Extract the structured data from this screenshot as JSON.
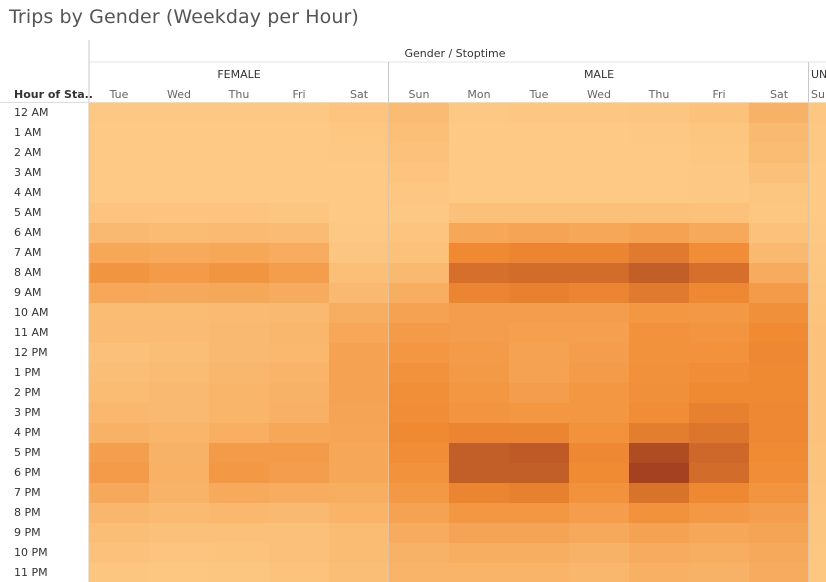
{
  "title": "Trips by Gender (Weekday per Hour)",
  "column_group_title": "Gender / Stoptime",
  "row_header": "Hour of Sta..",
  "colors": {
    "min": "#fdc985",
    "mid": "#f08a32",
    "max": "#9e3a1e",
    "divider": "#c8c8c8",
    "band_line": "#e6e6e6"
  },
  "chart_data": {
    "type": "heatmap",
    "title": "Trips by Gender (Weekday per Hour)",
    "column_field": "Gender / Stoptime",
    "row_field": "Hour of Sta..",
    "scale": "relative trip count, 0 (lightest) to 1 (darkest)",
    "rows": [
      "12 AM",
      "1 AM",
      "2 AM",
      "3 AM",
      "4 AM",
      "5 AM",
      "6 AM",
      "7 AM",
      "8 AM",
      "9 AM",
      "10 AM",
      "11 AM",
      "12 PM",
      "1 PM",
      "2 PM",
      "3 PM",
      "4 PM",
      "5 PM",
      "6 PM",
      "7 PM",
      "8 PM",
      "9 PM",
      "10 PM",
      "11 PM"
    ],
    "groups": [
      {
        "gender": "FEMALE",
        "days": [
          "Tue",
          "Wed",
          "Thu",
          "Fri",
          "Sat"
        ],
        "values": [
          [
            0.01,
            0.01,
            0.01,
            0.01,
            0.04
          ],
          [
            0.0,
            0.0,
            0.0,
            0.0,
            0.02
          ],
          [
            0.0,
            0.0,
            0.0,
            0.0,
            0.01
          ],
          [
            0.0,
            0.0,
            0.0,
            0.0,
            0.0
          ],
          [
            0.0,
            0.0,
            0.0,
            0.0,
            0.0
          ],
          [
            0.04,
            0.04,
            0.04,
            0.03,
            0.0
          ],
          [
            0.14,
            0.12,
            0.13,
            0.11,
            0.01
          ],
          [
            0.3,
            0.27,
            0.3,
            0.25,
            0.03
          ],
          [
            0.45,
            0.4,
            0.45,
            0.38,
            0.09
          ],
          [
            0.3,
            0.28,
            0.29,
            0.26,
            0.14
          ],
          [
            0.12,
            0.12,
            0.13,
            0.14,
            0.24
          ],
          [
            0.11,
            0.11,
            0.14,
            0.16,
            0.3
          ],
          [
            0.08,
            0.1,
            0.14,
            0.15,
            0.34
          ],
          [
            0.1,
            0.12,
            0.16,
            0.18,
            0.33
          ],
          [
            0.12,
            0.14,
            0.17,
            0.2,
            0.34
          ],
          [
            0.15,
            0.14,
            0.17,
            0.22,
            0.32
          ],
          [
            0.2,
            0.17,
            0.23,
            0.3,
            0.31
          ],
          [
            0.37,
            0.2,
            0.4,
            0.4,
            0.3
          ],
          [
            0.4,
            0.21,
            0.42,
            0.38,
            0.3
          ],
          [
            0.28,
            0.19,
            0.27,
            0.25,
            0.24
          ],
          [
            0.16,
            0.13,
            0.15,
            0.14,
            0.18
          ],
          [
            0.1,
            0.07,
            0.08,
            0.08,
            0.12
          ],
          [
            0.06,
            0.04,
            0.05,
            0.07,
            0.12
          ],
          [
            0.03,
            0.02,
            0.03,
            0.05,
            0.1
          ]
        ]
      },
      {
        "gender": "MALE",
        "days": [
          "Sun",
          "Mon",
          "Tue",
          "Wed",
          "Thu",
          "Fri",
          "Sat"
        ],
        "values": [
          [
            0.12,
            0.01,
            0.02,
            0.02,
            0.03,
            0.06,
            0.2
          ],
          [
            0.09,
            0.0,
            0.0,
            0.0,
            0.01,
            0.03,
            0.14
          ],
          [
            0.06,
            0.0,
            0.0,
            0.0,
            0.0,
            0.02,
            0.12
          ],
          [
            0.04,
            0.0,
            0.0,
            0.0,
            0.0,
            0.01,
            0.07
          ],
          [
            0.02,
            0.0,
            0.0,
            0.0,
            0.0,
            0.01,
            0.03
          ],
          [
            0.01,
            0.07,
            0.07,
            0.07,
            0.07,
            0.06,
            0.02
          ],
          [
            0.04,
            0.3,
            0.32,
            0.3,
            0.34,
            0.28,
            0.06
          ],
          [
            0.06,
            0.55,
            0.58,
            0.58,
            0.64,
            0.52,
            0.14
          ],
          [
            0.14,
            0.7,
            0.72,
            0.72,
            0.8,
            0.7,
            0.26
          ],
          [
            0.24,
            0.58,
            0.6,
            0.58,
            0.64,
            0.56,
            0.4
          ],
          [
            0.34,
            0.38,
            0.38,
            0.38,
            0.44,
            0.42,
            0.5
          ],
          [
            0.4,
            0.38,
            0.36,
            0.36,
            0.48,
            0.46,
            0.54
          ],
          [
            0.44,
            0.4,
            0.34,
            0.38,
            0.48,
            0.48,
            0.56
          ],
          [
            0.48,
            0.41,
            0.34,
            0.4,
            0.49,
            0.52,
            0.55
          ],
          [
            0.51,
            0.44,
            0.38,
            0.44,
            0.5,
            0.55,
            0.55
          ],
          [
            0.52,
            0.46,
            0.44,
            0.44,
            0.52,
            0.6,
            0.56
          ],
          [
            0.55,
            0.58,
            0.58,
            0.48,
            0.62,
            0.66,
            0.56
          ],
          [
            0.52,
            0.8,
            0.82,
            0.56,
            0.9,
            0.74,
            0.54
          ],
          [
            0.48,
            0.8,
            0.8,
            0.54,
            0.96,
            0.72,
            0.52
          ],
          [
            0.42,
            0.58,
            0.6,
            0.48,
            0.68,
            0.56,
            0.46
          ],
          [
            0.34,
            0.44,
            0.44,
            0.38,
            0.48,
            0.42,
            0.38
          ],
          [
            0.26,
            0.32,
            0.32,
            0.28,
            0.34,
            0.3,
            0.32
          ],
          [
            0.2,
            0.24,
            0.24,
            0.2,
            0.26,
            0.24,
            0.28
          ],
          [
            0.18,
            0.18,
            0.18,
            0.16,
            0.22,
            0.2,
            0.26
          ]
        ]
      },
      {
        "gender": "UNKNOWN",
        "days": [
          "Sun"
        ],
        "values": [
          [
            0.02
          ],
          [
            0.01
          ],
          [
            0.01
          ],
          [
            0.0
          ],
          [
            0.0
          ],
          [
            0.0
          ],
          [
            0.01
          ],
          [
            0.02
          ],
          [
            0.03
          ],
          [
            0.04
          ],
          [
            0.05
          ],
          [
            0.06
          ],
          [
            0.06
          ],
          [
            0.06
          ],
          [
            0.06
          ],
          [
            0.06
          ],
          [
            0.06
          ],
          [
            0.05
          ],
          [
            0.05
          ],
          [
            0.04
          ],
          [
            0.03
          ],
          [
            0.03
          ],
          [
            0.02
          ],
          [
            0.02
          ]
        ]
      }
    ]
  }
}
